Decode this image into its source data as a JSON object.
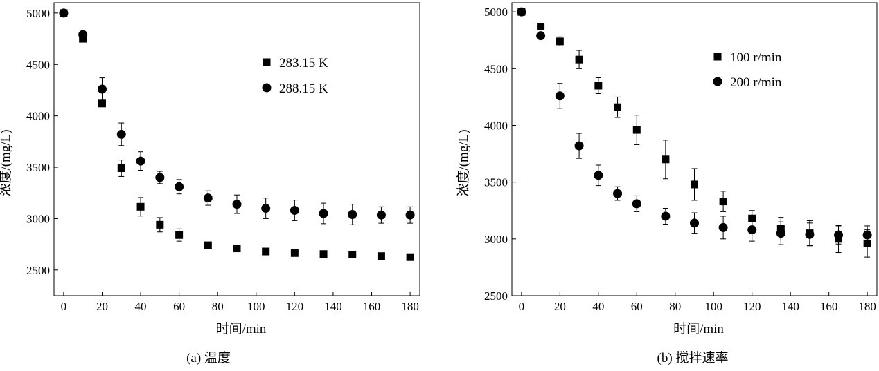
{
  "chart_data": [
    {
      "type": "scatter",
      "caption": "(a) 温度",
      "xlabel": "时间/min",
      "ylabel": "浓度/(mg/L)",
      "xlim": [
        -5,
        185
      ],
      "ylim": [
        2250,
        5100
      ],
      "xticks": [
        0,
        20,
        40,
        60,
        80,
        100,
        120,
        140,
        160,
        180
      ],
      "yticks": [
        2500,
        3000,
        3500,
        4000,
        4500,
        5000
      ],
      "grid": false,
      "legend_position": "top-right",
      "series": [
        {
          "name": "283.15 K",
          "marker": "square",
          "x": [
            0,
            10,
            20,
            30,
            40,
            50,
            60,
            75,
            90,
            105,
            120,
            135,
            150,
            165,
            180
          ],
          "y": [
            5000,
            4750,
            4120,
            3490,
            3115,
            2940,
            2840,
            2740,
            2710,
            2680,
            2665,
            2655,
            2650,
            2635,
            2625
          ],
          "err": [
            0,
            0,
            0,
            80,
            90,
            70,
            60,
            0,
            0,
            0,
            0,
            0,
            0,
            0,
            0
          ]
        },
        {
          "name": "288.15 K",
          "marker": "circle",
          "x": [
            0,
            10,
            20,
            30,
            40,
            50,
            60,
            75,
            90,
            105,
            120,
            135,
            150,
            165,
            180
          ],
          "y": [
            5000,
            4790,
            4260,
            3820,
            3560,
            3400,
            3310,
            3200,
            3140,
            3100,
            3080,
            3050,
            3040,
            3035,
            3035
          ],
          "err": [
            0,
            0,
            110,
            110,
            90,
            60,
            70,
            70,
            90,
            100,
            100,
            100,
            100,
            80,
            80
          ]
        }
      ]
    },
    {
      "type": "scatter",
      "caption": "(b) 搅拌速率",
      "xlabel": "时间/min",
      "ylabel": "浓度/(mg/L)",
      "xlim": [
        -5,
        185
      ],
      "ylim": [
        2500,
        5080
      ],
      "xticks": [
        0,
        20,
        40,
        60,
        80,
        100,
        120,
        140,
        160,
        180
      ],
      "yticks": [
        2500,
        3000,
        3500,
        4000,
        4500,
        5000
      ],
      "grid": false,
      "legend_position": "top-right",
      "series": [
        {
          "name": "100 r/min",
          "marker": "square",
          "x": [
            0,
            10,
            20,
            30,
            40,
            50,
            60,
            75,
            90,
            105,
            120,
            135,
            150,
            165,
            180
          ],
          "y": [
            5000,
            4870,
            4740,
            4580,
            4350,
            4160,
            3960,
            3700,
            3480,
            3330,
            3180,
            3090,
            3050,
            3000,
            2960
          ],
          "err": [
            0,
            0,
            40,
            80,
            70,
            90,
            130,
            170,
            140,
            90,
            70,
            100,
            110,
            120,
            120
          ]
        },
        {
          "name": "200 r/min",
          "marker": "circle",
          "x": [
            0,
            10,
            20,
            30,
            40,
            50,
            60,
            75,
            90,
            105,
            120,
            135,
            150,
            165,
            180
          ],
          "y": [
            5000,
            4790,
            4260,
            3820,
            3560,
            3400,
            3310,
            3200,
            3140,
            3100,
            3080,
            3050,
            3040,
            3035,
            3035
          ],
          "err": [
            0,
            0,
            110,
            110,
            90,
            60,
            70,
            70,
            90,
            100,
            100,
            100,
            100,
            80,
            80
          ]
        }
      ]
    }
  ]
}
